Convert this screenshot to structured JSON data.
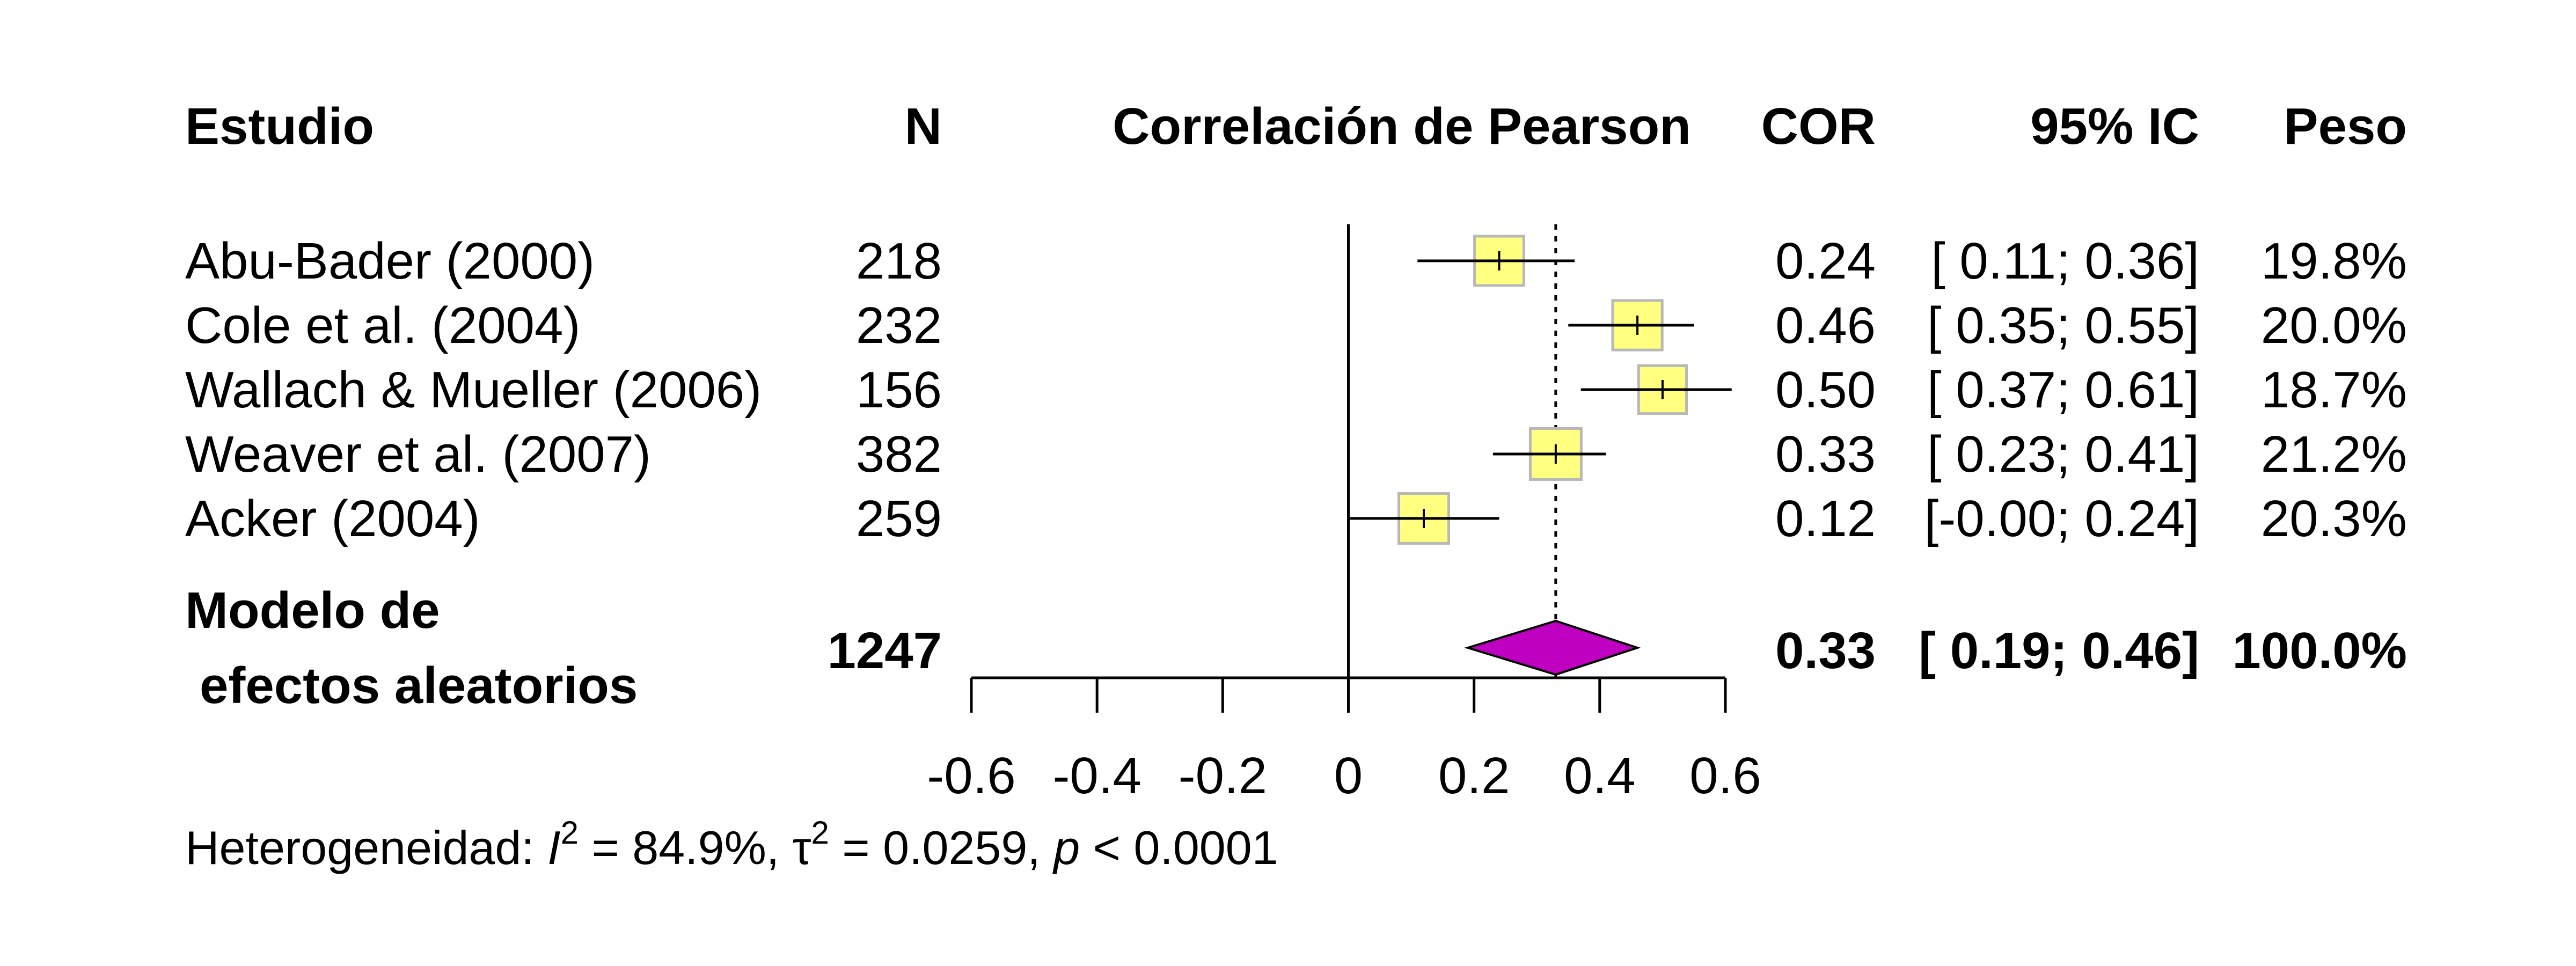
{
  "headers": {
    "study": "Estudio",
    "n": "N",
    "plot": "Correlación de Pearson",
    "cor": "COR",
    "ci": "95% IC",
    "weight": "Peso"
  },
  "pooled": {
    "label_line1": "Modelo de",
    "label_line2": "efectos aleatorios",
    "n": "1247",
    "cor_text": "0.33",
    "ci_text": "[ 0.19; 0.46]",
    "weight_text": "100.0%"
  },
  "heterogeneity": {
    "prefix": "Heterogeneidad: ",
    "i2_symbol": "I",
    "i2_value": " = 84.9%, ",
    "tau2_symbol": "τ",
    "tau2_value": " = 0.0259, ",
    "p_symbol": "p",
    "p_value": " < 0.0001"
  },
  "colors": {
    "box_fill": "#ffff80",
    "box_stroke": "#b8b8b8",
    "diamond_fill": "#c000c0",
    "line": "#000000"
  },
  "chart_data": {
    "type": "forest",
    "xlim": [
      -0.6,
      0.6
    ],
    "xticks": [
      -0.6,
      -0.4,
      -0.2,
      0,
      0.2,
      0.4,
      0.6
    ],
    "xtick_labels": [
      "-0.6",
      "-0.4",
      "-0.2",
      "0",
      "0.2",
      "0.4",
      "0.6"
    ],
    "null_value": 0,
    "studies": [
      {
        "name": "Abu-Bader (2000)",
        "n": "218",
        "cor": 0.24,
        "lower": 0.11,
        "upper": 0.36,
        "weight": 19.8,
        "cor_text": "0.24",
        "ci_text": "[ 0.11; 0.36]",
        "weight_text": "19.8%"
      },
      {
        "name": "Cole et al. (2004)",
        "n": "232",
        "cor": 0.46,
        "lower": 0.35,
        "upper": 0.55,
        "weight": 20.0,
        "cor_text": "0.46",
        "ci_text": "[ 0.35; 0.55]",
        "weight_text": "20.0%"
      },
      {
        "name": "Wallach & Mueller (2006)",
        "n": "156",
        "cor": 0.5,
        "lower": 0.37,
        "upper": 0.61,
        "weight": 18.7,
        "cor_text": "0.50",
        "ci_text": "[ 0.37; 0.61]",
        "weight_text": "18.7%"
      },
      {
        "name": "Weaver et al. (2007)",
        "n": "382",
        "cor": 0.33,
        "lower": 0.23,
        "upper": 0.41,
        "weight": 21.2,
        "cor_text": "0.33",
        "ci_text": "[ 0.23; 0.41]",
        "weight_text": "21.2%"
      },
      {
        "name": "Acker (2004)",
        "n": "259",
        "cor": 0.12,
        "lower": -0.0,
        "upper": 0.24,
        "weight": 20.3,
        "cor_text": "0.12",
        "ci_text": "[-0.00; 0.24]",
        "weight_text": "20.3%"
      }
    ],
    "pooled": {
      "cor": 0.33,
      "lower": 0.19,
      "upper": 0.46
    }
  }
}
